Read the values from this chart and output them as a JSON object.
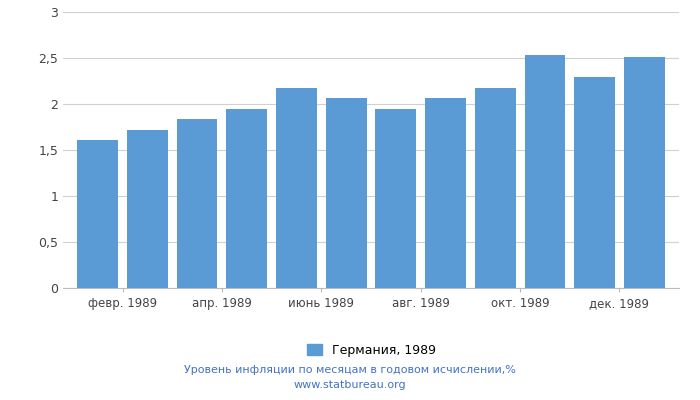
{
  "tick_labels": [
    "февр. 1989",
    "апр. 1989",
    "июнь 1989",
    "авг. 1989",
    "окт. 1989",
    "дек. 1989"
  ],
  "values": [
    1.61,
    1.72,
    1.84,
    1.95,
    2.17,
    2.06,
    1.95,
    2.06,
    2.17,
    2.53,
    2.29,
    2.51
  ],
  "bar_color": "#5b9bd5",
  "ylim": [
    0,
    3.0
  ],
  "yticks": [
    0,
    0.5,
    1.0,
    1.5,
    2.0,
    2.5,
    3.0
  ],
  "ytick_labels": [
    "0",
    "0,5",
    "1",
    "1,5",
    "2",
    "2,5",
    "3"
  ],
  "legend_label": "Германия, 1989",
  "footnote_line1": "Уровень инфляции по месяцам в годовом исчислении,%",
  "footnote_line2": "www.statbureau.org",
  "background_color": "#ffffff",
  "grid_color": "#d0d0d0"
}
